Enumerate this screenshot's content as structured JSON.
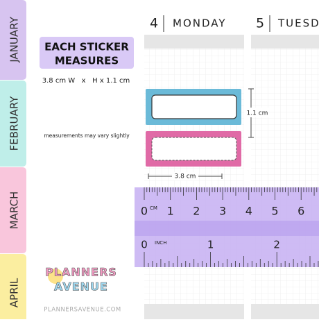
{
  "tabs": [
    "JANUARY",
    "FEBRUARY",
    "MARCH",
    "APRIL"
  ],
  "info": {
    "title": [
      "EACH STICKER",
      "MEASURES"
    ],
    "dimensions": "3.8 cm W   x   H x 1.1 cm",
    "note": "measurements may vary slightly"
  },
  "planner": {
    "days": [
      {
        "number": "4",
        "name": "MONDAY"
      },
      {
        "number": "5",
        "name": "TUESD"
      }
    ]
  },
  "stickers": {
    "height_label": "1.1 cm",
    "width_label": "3.8 cm"
  },
  "ruler": {
    "cm_unit": "CM",
    "cm_labels": [
      "0",
      "1",
      "2",
      "3",
      "4",
      "5",
      "6"
    ],
    "inch_unit": "INCH",
    "inch_labels": [
      "0",
      "1",
      "2"
    ]
  },
  "logo": {
    "line1": "PLANNERS",
    "line2": "AVENUE",
    "url": "PLANNERSAVENUE.COM"
  }
}
